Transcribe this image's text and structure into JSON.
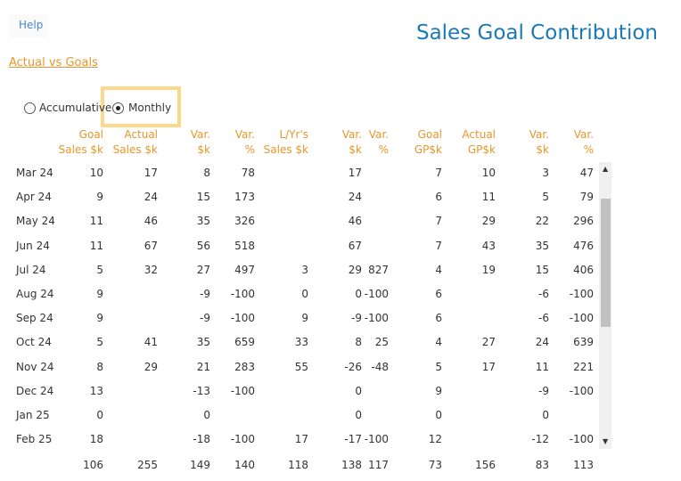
{
  "help": "Help",
  "title": "Sales Goal Contribution",
  "link": "Actual vs Goals",
  "options": [
    "Accumulative",
    "Monthly"
  ],
  "selected_option": 1,
  "table": {
    "headers": [
      [
        "Goal",
        "Sales $k"
      ],
      [
        "Actual",
        "Sales $k"
      ],
      [
        "Var.",
        "$k"
      ],
      [
        "Var.",
        "%"
      ],
      [
        "L/Yr's",
        "Sales $k"
      ],
      [
        "Var.",
        "$k"
      ],
      [
        "Var.",
        "%"
      ],
      [
        "Goal",
        "GP$k"
      ],
      [
        "Actual",
        "GP$k"
      ],
      [
        "Var.",
        "$k"
      ],
      [
        "Var.",
        "%"
      ]
    ],
    "rows": [
      {
        "label": "Mar 24",
        "cells": [
          10,
          17,
          8,
          78,
          null,
          17,
          null,
          7,
          10,
          3,
          47
        ]
      },
      {
        "label": "Apr 24",
        "cells": [
          9,
          24,
          15,
          173,
          null,
          24,
          null,
          6,
          11,
          5,
          79
        ]
      },
      {
        "label": "May 24",
        "cells": [
          11,
          46,
          35,
          326,
          null,
          46,
          null,
          7,
          29,
          22,
          296
        ]
      },
      {
        "label": "Jun 24",
        "cells": [
          11,
          67,
          56,
          518,
          null,
          67,
          null,
          7,
          43,
          35,
          476
        ]
      },
      {
        "label": "Jul 24",
        "cells": [
          5,
          32,
          27,
          497,
          3,
          29,
          827,
          4,
          19,
          15,
          406
        ]
      },
      {
        "label": "Aug 24",
        "cells": [
          9,
          null,
          -9,
          -100,
          0,
          0,
          -100,
          6,
          null,
          -6,
          -100
        ]
      },
      {
        "label": "Sep 24",
        "cells": [
          9,
          null,
          -9,
          -100,
          9,
          -9,
          -100,
          6,
          null,
          -6,
          -100
        ]
      },
      {
        "label": "Oct 24",
        "cells": [
          5,
          41,
          35,
          659,
          33,
          8,
          25,
          4,
          27,
          24,
          639
        ]
      },
      {
        "label": "Nov 24",
        "cells": [
          8,
          29,
          21,
          283,
          55,
          -26,
          -48,
          5,
          17,
          11,
          221
        ]
      },
      {
        "label": "Dec 24",
        "cells": [
          13,
          null,
          -13,
          -100,
          null,
          0,
          null,
          9,
          null,
          -9,
          -100
        ]
      },
      {
        "label": "Jan 25",
        "cells": [
          0,
          null,
          0,
          null,
          null,
          0,
          null,
          0,
          null,
          0,
          null
        ]
      },
      {
        "label": "Feb 25",
        "cells": [
          18,
          null,
          -18,
          -100,
          17,
          -17,
          -100,
          12,
          null,
          -12,
          -100
        ]
      }
    ],
    "totals": [
      106,
      255,
      149,
      140,
      118,
      138,
      117,
      73,
      156,
      83,
      113
    ]
  }
}
